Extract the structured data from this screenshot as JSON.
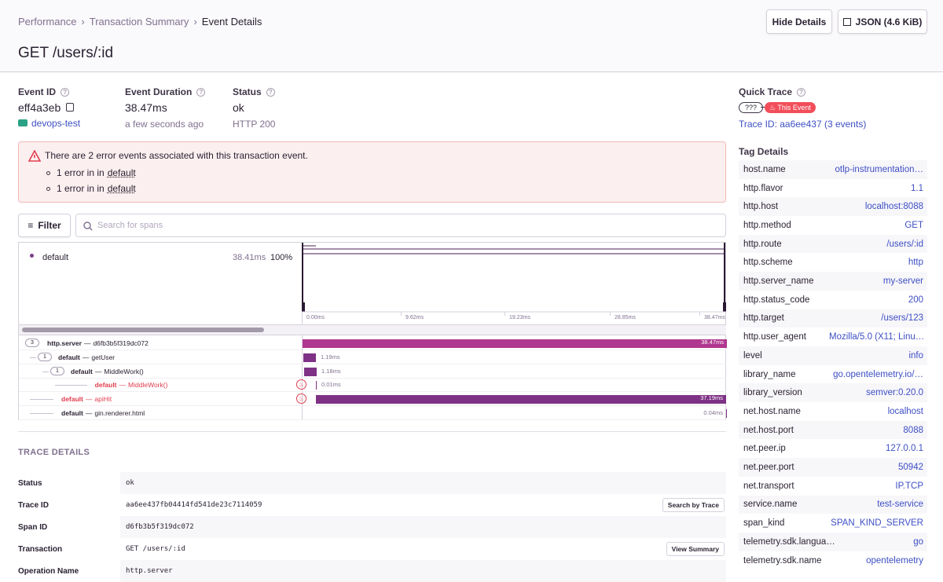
{
  "header": {
    "breadcrumbs": [
      "Performance",
      "Transaction Summary",
      "Event Details"
    ],
    "title": "GET /users/:id",
    "buttons": [
      "Hide Details",
      "JSON (4.6 KiB)"
    ]
  },
  "summary": {
    "event_id": {
      "label": "Event ID",
      "value": "eff4a3eb",
      "project": "devops-test"
    },
    "duration": {
      "label": "Event Duration",
      "value": "38.47ms",
      "sub": "a few seconds ago"
    },
    "status": {
      "label": "Status",
      "value": "ok",
      "sub": "HTTP 200"
    }
  },
  "alert": {
    "message": "There are 2 error events associated with this transaction event.",
    "items": [
      {
        "text": "1 error in in",
        "link": "default"
      },
      {
        "text": "1 error in in",
        "link": "default"
      }
    ]
  },
  "toolbar": {
    "filter": "Filter",
    "search_placeholder": "Search for spans"
  },
  "minimap": {
    "op": "default",
    "duration": "38.41ms",
    "percent": "100%",
    "ticks": [
      "0.00ms",
      "9.62ms",
      "19.23ms",
      "28.85ms",
      "38.47ms"
    ]
  },
  "spans": {
    "separator": "—",
    "rows": [
      {
        "count": "3",
        "op": "http.server",
        "desc": "d6fb3b5f319dc072",
        "duration": "38.47ms"
      },
      {
        "count": "1",
        "op": "default",
        "desc": "getUser",
        "duration": "1.19ms"
      },
      {
        "count": "1",
        "op": "default",
        "desc": "MiddleWork()",
        "duration": "1.18ms"
      },
      {
        "op": "default",
        "desc": "MiddleWork()",
        "duration": "0.01ms"
      },
      {
        "op": "default",
        "desc": "apiHit",
        "duration": "37.19ms"
      },
      {
        "op": "default",
        "desc": "gin.renderer.html",
        "duration": "0.04ms"
      }
    ]
  },
  "trace_details": {
    "heading": "TRACE DETAILS",
    "rows": [
      [
        "Status",
        "ok"
      ],
      [
        "Trace ID",
        "aa6ee437fb04414fd541de23c7114059",
        "Search by Trace"
      ],
      [
        "Span ID",
        "d6fb3b5f319dc072"
      ],
      [
        "Transaction",
        "GET /users/:id",
        "View Summary"
      ],
      [
        "Operation Name",
        "http.server"
      ]
    ]
  },
  "quick_trace": {
    "label": "Quick Trace",
    "unknown": "???",
    "this_event": "This Event",
    "trace_link": "Trace ID: aa6ee437 (3 events)"
  },
  "tag_details": {
    "title": "Tag Details",
    "tags": [
      [
        "host.name",
        "otlp-instrumentation…"
      ],
      [
        "http.flavor",
        "1.1"
      ],
      [
        "http.host",
        "localhost:8088"
      ],
      [
        "http.method",
        "GET"
      ],
      [
        "http.route",
        "/users/:id"
      ],
      [
        "http.scheme",
        "http"
      ],
      [
        "http.server_name",
        "my-server"
      ],
      [
        "http.status_code",
        "200"
      ],
      [
        "http.target",
        "/users/123"
      ],
      [
        "http.user_agent",
        "Mozilla/5.0 (X11; Linu…"
      ],
      [
        "level",
        "info"
      ],
      [
        "library_name",
        "go.opentelemetry.io/…"
      ],
      [
        "library_version",
        "semver:0.20.0"
      ],
      [
        "net.host.name",
        "localhost"
      ],
      [
        "net.host.port",
        "8088"
      ],
      [
        "net.peer.ip",
        "127.0.0.1"
      ],
      [
        "net.peer.port",
        "50942"
      ],
      [
        "net.transport",
        "IP.TCP"
      ],
      [
        "service.name",
        "test-service"
      ],
      [
        "span_kind",
        "SPAN_KIND_SERVER"
      ],
      [
        "telemetry.sdk.langua…",
        "go"
      ],
      [
        "telemetry.sdk.name",
        "opentelemetry"
      ]
    ]
  }
}
